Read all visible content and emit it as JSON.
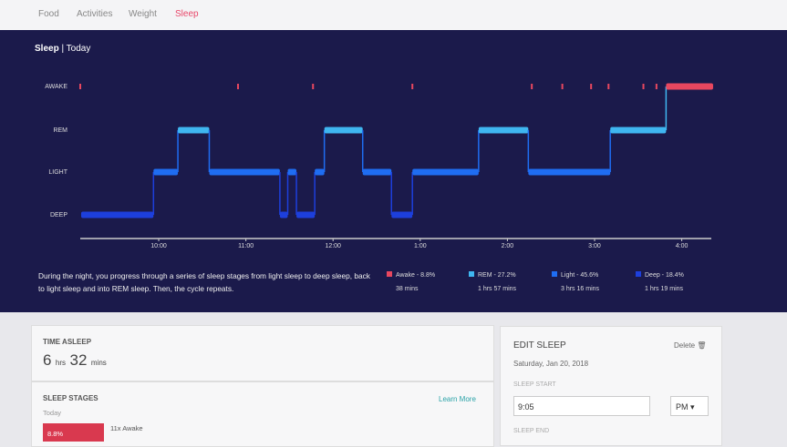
{
  "nav": {
    "tabs": [
      "Food",
      "Activities",
      "Weight",
      "Sleep"
    ]
  },
  "panel": {
    "title": "Sleep",
    "subtitle": "Today",
    "description": "During the night, you progress through a series of sleep stages from light sleep to deep sleep, back to light sleep and into REM sleep. Then, the cycle repeats."
  },
  "chart_data": {
    "type": "step",
    "categories": [
      "AWAKE",
      "REM",
      "LIGHT",
      "DEEP"
    ],
    "colors": [
      "#e8475f",
      "#3fb6f0",
      "#1f6df2",
      "#1d3fdc"
    ],
    "xlim": [
      21.1,
      28.36
    ],
    "xticks": [
      {
        "value": 22,
        "label": "10:00"
      },
      {
        "value": 23,
        "label": "11:00"
      },
      {
        "value": 24,
        "label": "12:00"
      },
      {
        "value": 25,
        "label": "1:00"
      },
      {
        "value": 26,
        "label": "2:00"
      },
      {
        "value": 27,
        "label": "3:00"
      },
      {
        "value": 28,
        "label": "4:00"
      }
    ],
    "segments": [
      {
        "stage": 3,
        "start": 21.11,
        "end": 21.94
      },
      {
        "stage": 2,
        "start": 21.94,
        "end": 22.22
      },
      {
        "stage": 1,
        "start": 22.22,
        "end": 22.58
      },
      {
        "stage": 2,
        "start": 22.58,
        "end": 23.39
      },
      {
        "stage": 3,
        "start": 23.39,
        "end": 23.48
      },
      {
        "stage": 2,
        "start": 23.48,
        "end": 23.58
      },
      {
        "stage": 3,
        "start": 23.58,
        "end": 23.79
      },
      {
        "stage": 2,
        "start": 23.79,
        "end": 23.9
      },
      {
        "stage": 1,
        "start": 23.9,
        "end": 24.34
      },
      {
        "stage": 2,
        "start": 24.34,
        "end": 24.67
      },
      {
        "stage": 3,
        "start": 24.67,
        "end": 24.91
      },
      {
        "stage": 2,
        "start": 24.91,
        "end": 25.67
      },
      {
        "stage": 1,
        "start": 25.67,
        "end": 26.24
      },
      {
        "stage": 2,
        "start": 26.24,
        "end": 27.18
      },
      {
        "stage": 1,
        "start": 27.18,
        "end": 27.82
      },
      {
        "stage": 0,
        "start": 27.82,
        "end": 28.36
      }
    ],
    "awake_marks": [
      21.1,
      22.91,
      23.77,
      24.91,
      26.28,
      26.63,
      26.96,
      27.16,
      27.56,
      27.71
    ],
    "legend": [
      {
        "label": "Awake - 8.8%",
        "duration": "38 mins"
      },
      {
        "label": "REM - 27.2%",
        "duration": "1 hrs 57 mins"
      },
      {
        "label": "Light - 45.6%",
        "duration": "3 hrs 16 mins"
      },
      {
        "label": "Deep - 18.4%",
        "duration": "1 hrs 19 mins"
      }
    ]
  },
  "time_asleep": {
    "title": "TIME ASLEEP",
    "hours": "6",
    "hours_unit": "hrs",
    "minutes": "32",
    "minutes_unit": "mins"
  },
  "sleep_stages": {
    "title": "SLEEP STAGES",
    "subtitle": "Today",
    "link": "Learn More",
    "bar_label": "8.8%",
    "awake_count": "11x Awake"
  },
  "edit_sleep": {
    "title": "EDIT SLEEP",
    "delete": "Delete",
    "date": "Saturday, Jan 20, 2018",
    "start_label": "SLEEP START",
    "start_value": "9:05",
    "ampm": "PM",
    "end_label": "SLEEP END"
  }
}
